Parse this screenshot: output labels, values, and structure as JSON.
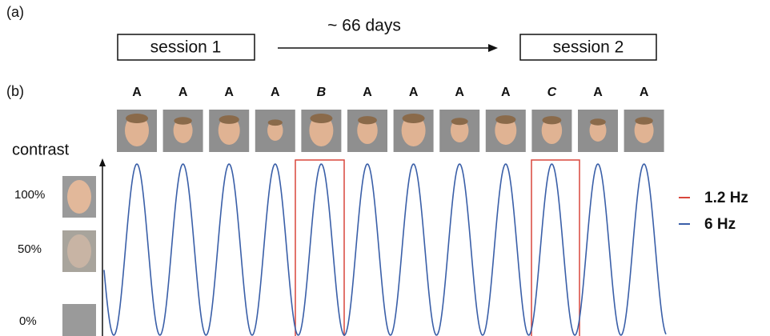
{
  "panel_a": {
    "label": "(a)",
    "session_1": "session 1",
    "interval": "~ 66 days",
    "session_2": "session 2"
  },
  "panel_b": {
    "label": "(b)",
    "stimulus_labels": [
      "A",
      "A",
      "A",
      "A",
      "B",
      "A",
      "A",
      "A",
      "A",
      "C",
      "A",
      "A"
    ],
    "y_axis_title": "contrast",
    "contrast_levels": [
      "100%",
      "50%",
      "0%"
    ],
    "legend": [
      "1.2 Hz",
      "6 Hz"
    ]
  }
}
